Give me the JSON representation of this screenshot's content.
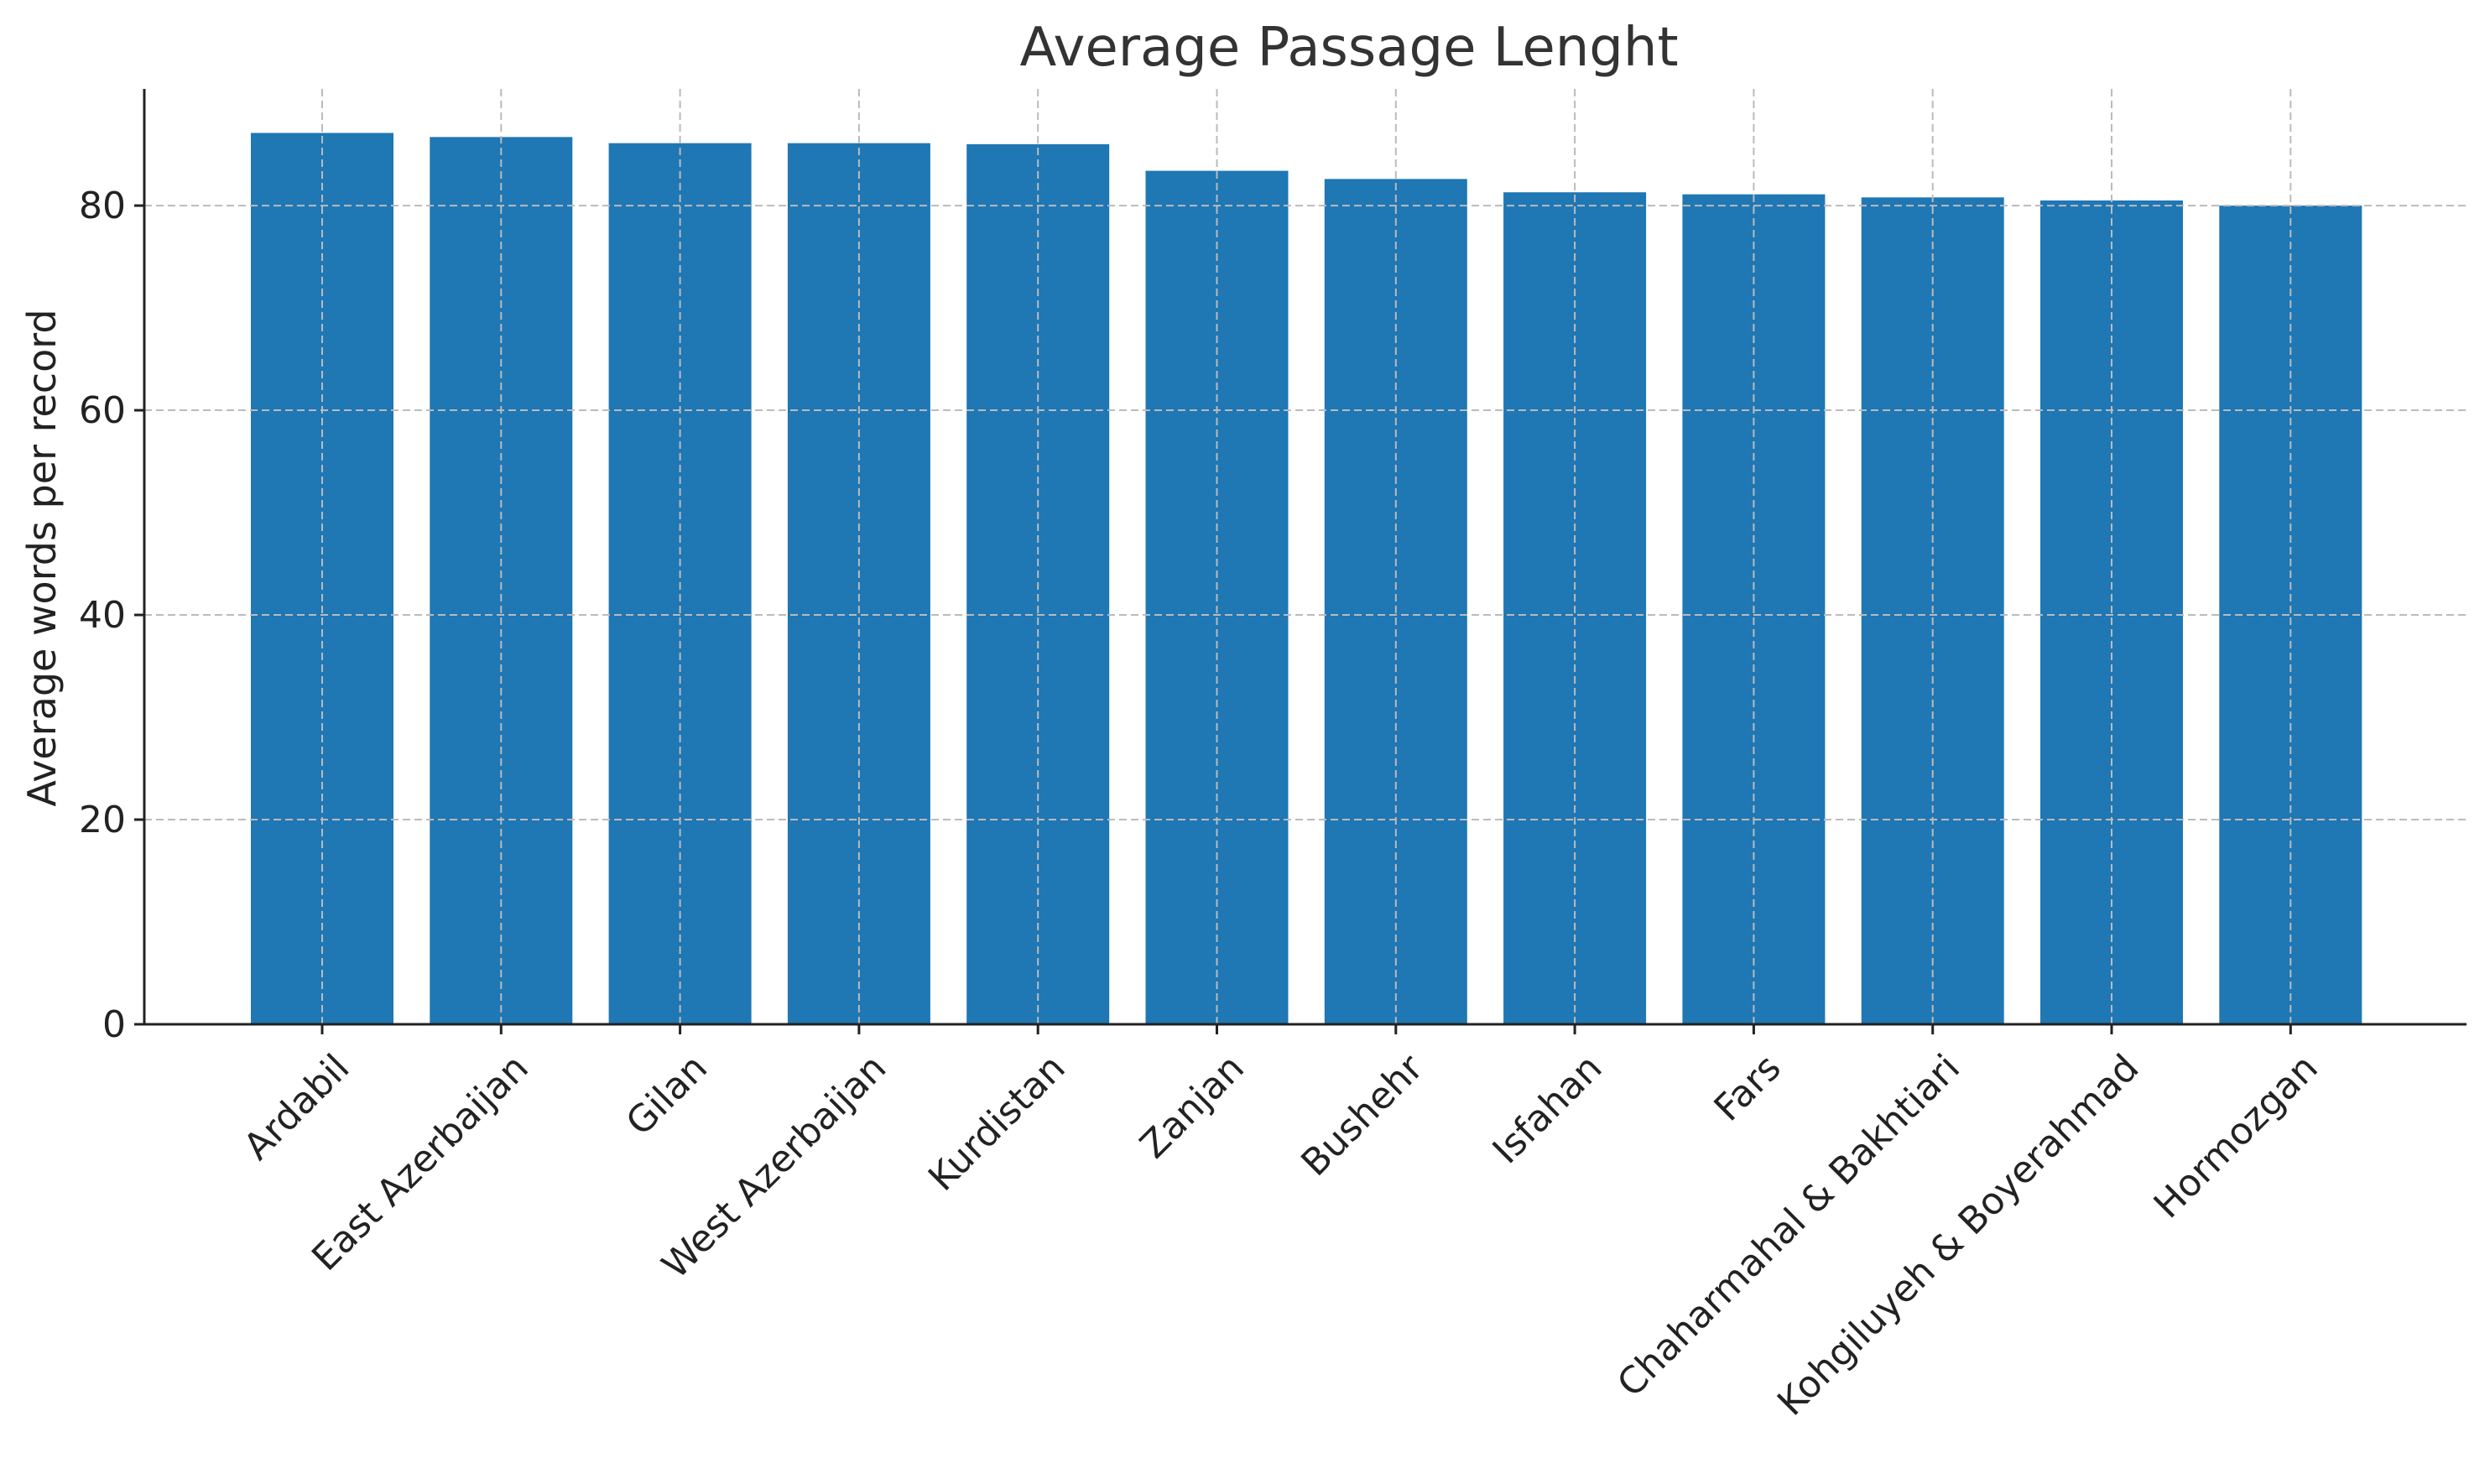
{
  "chart_data": {
    "type": "bar",
    "title": "Average Passage Lenght",
    "xlabel": "",
    "ylabel": "Average words per record",
    "categories": [
      "Ardabil",
      "East Azerbaijan",
      "Gilan",
      "West Azerbaijan",
      "Kurdistan",
      "Zanjan",
      "Bushehr",
      "Isfahan",
      "Fars",
      "Chaharmahal & Bakhtiari",
      "Kohgiluyeh & Boyerahmad",
      "Hormozgan"
    ],
    "values": [
      87.1,
      86.7,
      86.1,
      86.1,
      86.0,
      83.4,
      82.6,
      81.3,
      81.1,
      80.8,
      80.5,
      80.0
    ],
    "yticks": [
      0,
      20,
      40,
      60,
      80
    ],
    "ylim": [
      0,
      91.4
    ],
    "grid": true,
    "bar_color": "#1f77b4"
  }
}
